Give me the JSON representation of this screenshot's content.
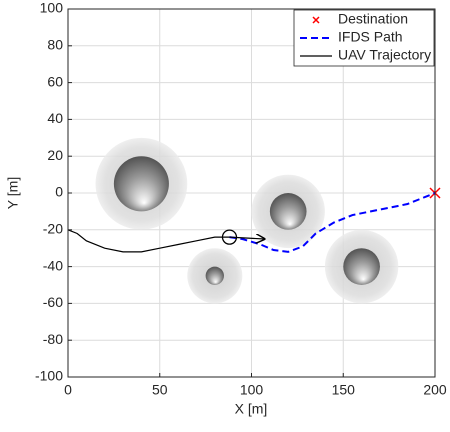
{
  "chart_data": {
    "type": "line",
    "xlabel": "X [m]",
    "ylabel": "Y [m]",
    "xlim": [
      0,
      200
    ],
    "ylim": [
      -100,
      100
    ],
    "xticks": [
      0,
      50,
      100,
      150,
      200
    ],
    "yticks": [
      -100,
      -80,
      -60,
      -40,
      -20,
      0,
      20,
      40,
      60,
      80,
      100
    ],
    "grid": true,
    "legend_position": "top-right",
    "series": [
      {
        "name": "Destination",
        "color": "#ff0000",
        "style": "marker-x",
        "x": [
          200
        ],
        "values": [
          0
        ]
      },
      {
        "name": "IFDS Path",
        "color": "#0000ff",
        "style": "dashed",
        "x": [
          88,
          95,
          105,
          112,
          120,
          128,
          135,
          145,
          155,
          165,
          175,
          185,
          195,
          200
        ],
        "values": [
          -24,
          -25,
          -28,
          -31,
          -32,
          -29,
          -22,
          -16,
          -12,
          -10,
          -8,
          -6,
          -2,
          0
        ]
      },
      {
        "name": "UAV Trajectory",
        "color": "#000000",
        "style": "solid",
        "x": [
          0,
          5,
          10,
          20,
          30,
          40,
          50,
          60,
          70,
          80,
          88
        ],
        "values": [
          -20,
          -22,
          -26,
          -30,
          -32,
          -32,
          -30,
          -28,
          -26,
          -24,
          -24
        ]
      }
    ],
    "uav_position": {
      "x": 88,
      "y": -24
    },
    "heading_arrow": {
      "x": [
        88,
        107
      ],
      "y": [
        -24,
        -25
      ]
    },
    "obstacles": [
      {
        "x": 40,
        "y": 5,
        "r_inner": 15,
        "r_outer": 25
      },
      {
        "x": 120,
        "y": -10,
        "r_inner": 10,
        "r_outer": 20
      },
      {
        "x": 80,
        "y": -45,
        "r_inner": 5,
        "r_outer": 15
      },
      {
        "x": 160,
        "y": -40,
        "r_inner": 10,
        "r_outer": 20
      }
    ]
  }
}
